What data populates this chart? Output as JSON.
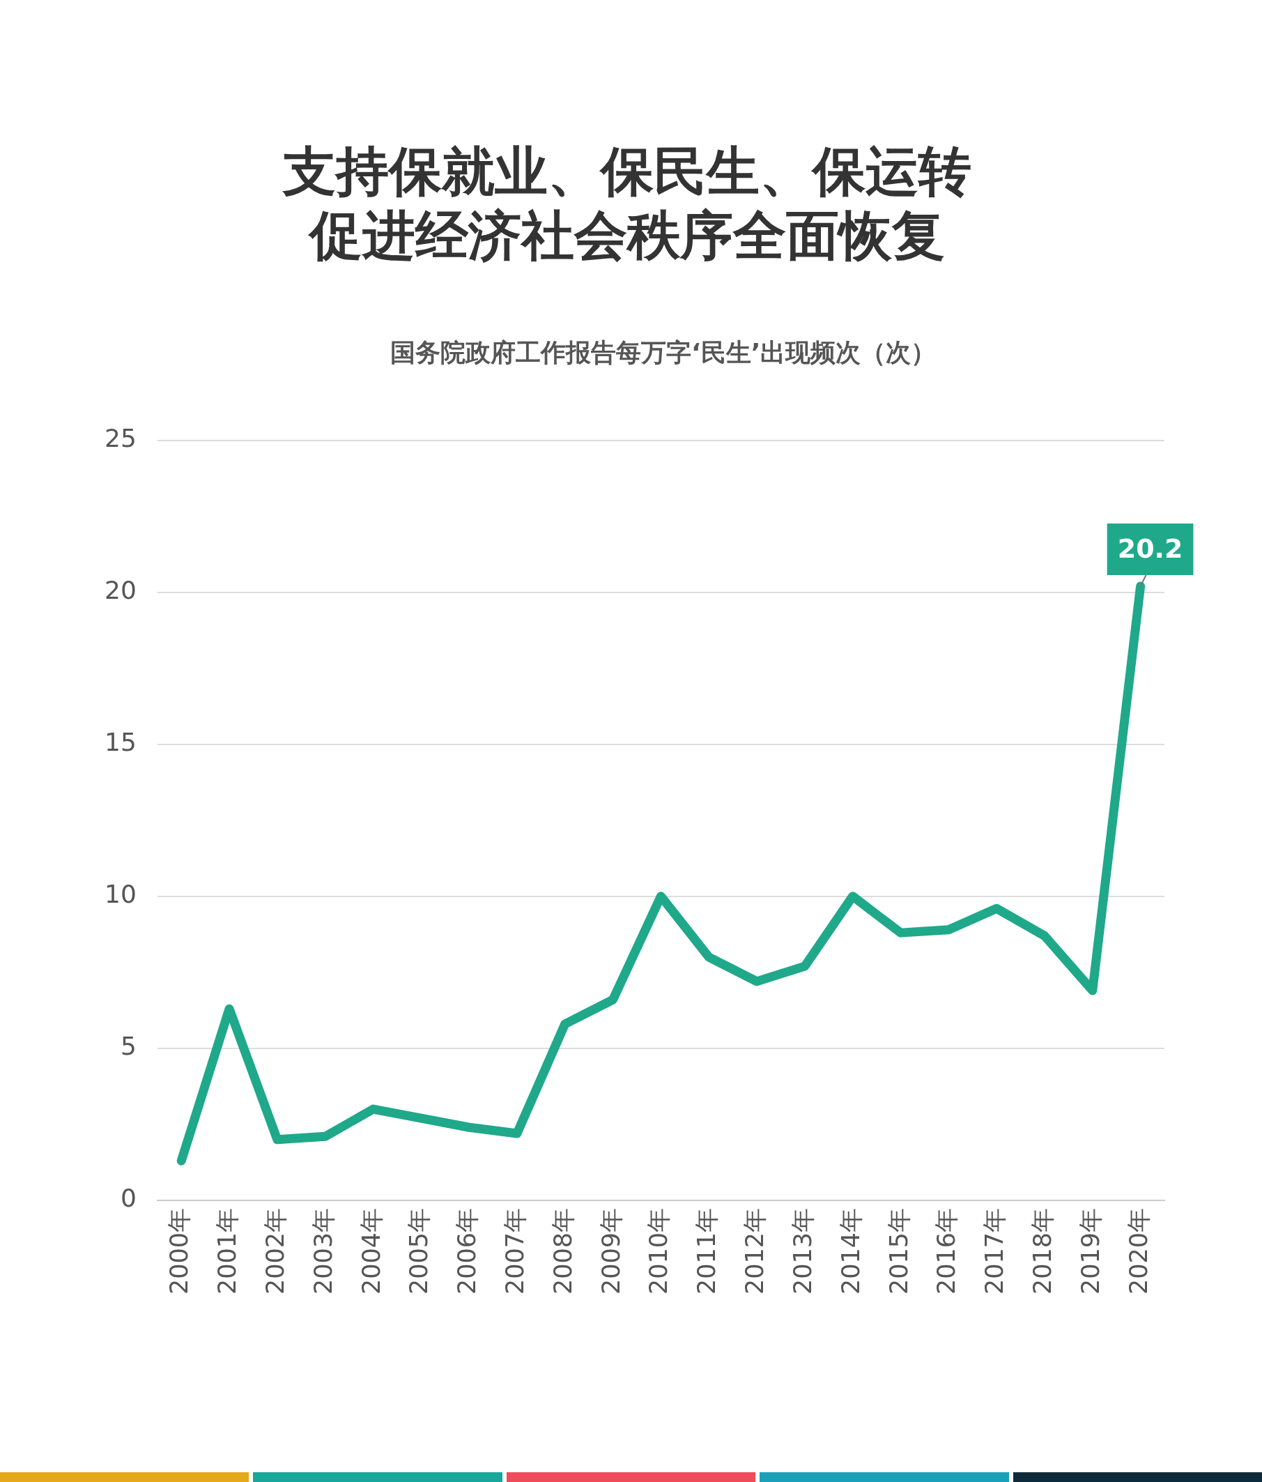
{
  "chart_data": {
    "type": "line",
    "title": "支持保就业、保民生、保运转促进经济社会秩序全面恢复",
    "subtitle": "国务院政府工作报告每万字‘民生’出现频次（次）",
    "categories": [
      "2000年",
      "2001年",
      "2002年",
      "2003年",
      "2004年",
      "2005年",
      "2006年",
      "2007年",
      "2008年",
      "2009年",
      "2010年",
      "2011年",
      "2012年",
      "2013年",
      "2014年",
      "2015年",
      "2016年",
      "2017年",
      "2018年",
      "2019年",
      "2020年"
    ],
    "series": [
      {
        "color": "#1fa98a",
        "values": [
          1.3,
          6.3,
          2.0,
          2.1,
          3.0,
          2.7,
          2.4,
          2.2,
          5.8,
          6.6,
          10.0,
          8.0,
          7.2,
          7.7,
          10.0,
          8.8,
          8.9,
          9.6,
          8.7,
          6.9,
          20.2
        ],
        "value_labels": [
          null,
          null,
          null,
          null,
          null,
          null,
          null,
          null,
          null,
          null,
          null,
          null,
          null,
          null,
          null,
          null,
          null,
          null,
          null,
          null,
          "20.2"
        ]
      }
    ],
    "ylim": [
      0,
      25
    ],
    "yticks": [
      0,
      5,
      10,
      15,
      20,
      25
    ],
    "grid": "y",
    "legend": false,
    "marker": "none",
    "line_style": "solid"
  }
}
